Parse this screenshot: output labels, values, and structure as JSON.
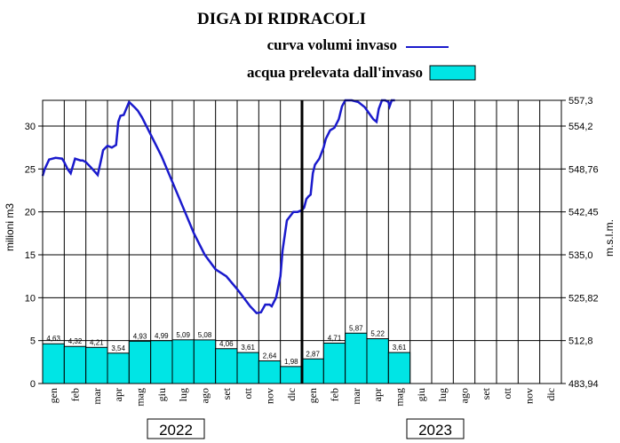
{
  "chart_data": {
    "type": "bar",
    "title": "DIGA DI RIDRACOLI",
    "legend": [
      {
        "label": "curva volumi invaso",
        "color": "#1a1acc",
        "kind": "line"
      },
      {
        "label": "acqua prelevata dall'invaso",
        "color": "#00e5e5",
        "kind": "bar"
      }
    ],
    "ylabel": "milioni m3",
    "y2label": "m.s.l.m.",
    "ylim": [
      0,
      33
    ],
    "y_ticks": [
      "0",
      "5",
      "10",
      "15",
      "20",
      "25",
      "30"
    ],
    "y2_ticks": [
      "483,94",
      "512,8",
      "525,82",
      "535,0",
      "542,45",
      "548,76",
      "554,2",
      "557,3"
    ],
    "y2_tick_at": [
      0,
      5,
      10,
      15,
      20,
      25,
      30,
      33
    ],
    "months": [
      "gen",
      "feb",
      "mar",
      "apr",
      "mag",
      "giu",
      "lug",
      "ago",
      "set",
      "ott",
      "nov",
      "dic",
      "gen",
      "feb",
      "mar",
      "apr",
      "mag",
      "giu",
      "lug",
      "ago",
      "set",
      "ott",
      "nov",
      "dic"
    ],
    "years": [
      "2022",
      "2023"
    ],
    "bars": {
      "labels": [
        "4,63",
        "4,32",
        "4,21",
        "3,54",
        "4,93",
        "4,99",
        "5,09",
        "5,08",
        "4,06",
        "3,61",
        "2,64",
        "1,98",
        "2,87",
        "4,71",
        "5,87",
        "5,22",
        "3,61"
      ],
      "values": [
        4.63,
        4.32,
        4.21,
        3.54,
        4.93,
        4.99,
        5.09,
        5.08,
        4.06,
        3.61,
        2.64,
        1.98,
        2.87,
        4.71,
        5.87,
        5.22,
        3.61
      ],
      "color": "#00e5e5"
    },
    "volume_curve": {
      "color": "#1a1acc",
      "x": [
        0,
        0.1,
        0.3,
        0.6,
        0.9,
        1.0,
        1.15,
        1.3,
        1.5,
        1.75,
        1.85,
        2.0,
        2.3,
        2.55,
        2.7,
        2.8,
        3.0,
        3.2,
        3.4,
        3.5,
        3.6,
        3.75,
        4.0,
        4.25,
        4.4,
        4.6,
        5.0,
        5.5,
        6.0,
        6.5,
        7.0,
        7.5,
        8.0,
        8.5,
        9.0,
        9.3,
        9.6,
        9.9,
        10.1,
        10.3,
        10.5,
        10.6,
        10.8,
        11.0,
        11.1,
        11.3,
        11.6,
        11.8,
        12.0,
        12.1,
        12.2,
        12.3,
        12.4,
        12.5,
        12.6,
        12.8,
        13.0,
        13.1,
        13.3,
        13.5,
        13.7,
        13.85,
        14.0,
        14.3,
        14.6,
        14.9,
        15.1,
        15.3,
        15.45,
        15.55,
        15.7,
        15.85,
        16.0,
        16.05,
        16.15,
        16.3
      ],
      "y": [
        24.2,
        25.0,
        26.1,
        26.3,
        26.2,
        25.8,
        25.0,
        24.5,
        26.2,
        26.0,
        26.0,
        25.8,
        25.0,
        24.3,
        26.0,
        27.2,
        27.7,
        27.5,
        27.8,
        30.5,
        31.2,
        31.3,
        32.8,
        32.2,
        31.8,
        31.0,
        29.0,
        26.5,
        23.5,
        20.5,
        17.5,
        15.0,
        13.3,
        12.5,
        11.0,
        10.0,
        9.0,
        8.2,
        8.3,
        9.2,
        9.2,
        9.0,
        10.0,
        12.5,
        15.5,
        19.0,
        20.0,
        20.0,
        20.2,
        20.5,
        21.5,
        21.8,
        22.0,
        24.5,
        25.5,
        26.2,
        27.5,
        28.5,
        29.5,
        29.8,
        30.8,
        32.3,
        33.0,
        33.0,
        32.8,
        32.2,
        31.5,
        30.8,
        30.5,
        32.0,
        33.0,
        33.0,
        32.8,
        32.3,
        33.0,
        33.0
      ]
    },
    "reference_line": {
      "value": 33.0,
      "color": "#ff3333"
    },
    "marker_at_x": 12
  }
}
